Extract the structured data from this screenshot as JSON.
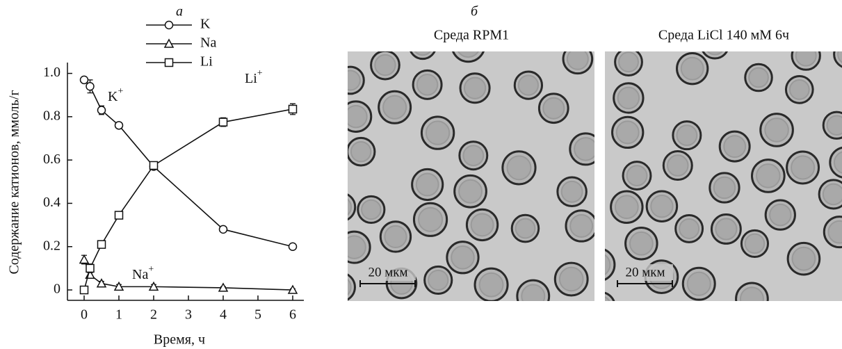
{
  "chart_data": {
    "type": "line",
    "y_label": "Содержание катионов, ммоль/г",
    "x_label": "Время, ч",
    "x": [
      0,
      0.17,
      0.5,
      1,
      2,
      4,
      6
    ],
    "series": [
      {
        "name": "K",
        "color": "#111111",
        "marker": "circle",
        "values": [
          0.97,
          0.94,
          0.83,
          0.76,
          0.57,
          0.28,
          0.2
        ],
        "errors": [
          0.01,
          0.03,
          0.02,
          0.01,
          0.01,
          0.01,
          0.01
        ]
      },
      {
        "name": "Na",
        "color": "#111111",
        "marker": "triangle",
        "values": [
          0.14,
          0.07,
          0.03,
          0.015,
          0.015,
          0.01,
          0.0
        ],
        "errors": [
          0.02,
          0.01,
          0.01,
          0.01,
          0.01,
          0.005,
          0.005
        ]
      },
      {
        "name": "Li",
        "color": "#111111",
        "marker": "square",
        "values": [
          0.0,
          0.1,
          0.21,
          0.345,
          0.575,
          0.775,
          0.835
        ],
        "errors": [
          0.01,
          0.02,
          0.01,
          0.015,
          0.01,
          0.02,
          0.025
        ]
      }
    ],
    "annotations": [
      {
        "text": "K",
        "sup": "+"
      },
      {
        "text": "Li",
        "sup": "+"
      },
      {
        "text": "Na",
        "sup": "+"
      }
    ],
    "xlim": [
      -0.48,
      6.32
    ],
    "ylim": [
      -0.048,
      1.05
    ],
    "xticks": [
      0,
      1,
      2,
      3,
      4,
      5,
      6
    ],
    "yticks": [
      0,
      0.2,
      0.4,
      0.6,
      0.8,
      {
        "value": 1.0,
        "label": "1.0"
      }
    ],
    "legend": "top"
  },
  "figure": {
    "panel_a_label": "а",
    "panel_b_label": "б",
    "images": [
      {
        "title": "Среда RPM1",
        "scale_bar": "20 мкм"
      },
      {
        "title": "Среда LiCl 140 мМ 6ч",
        "scale_bar": "20 мкм"
      }
    ]
  }
}
